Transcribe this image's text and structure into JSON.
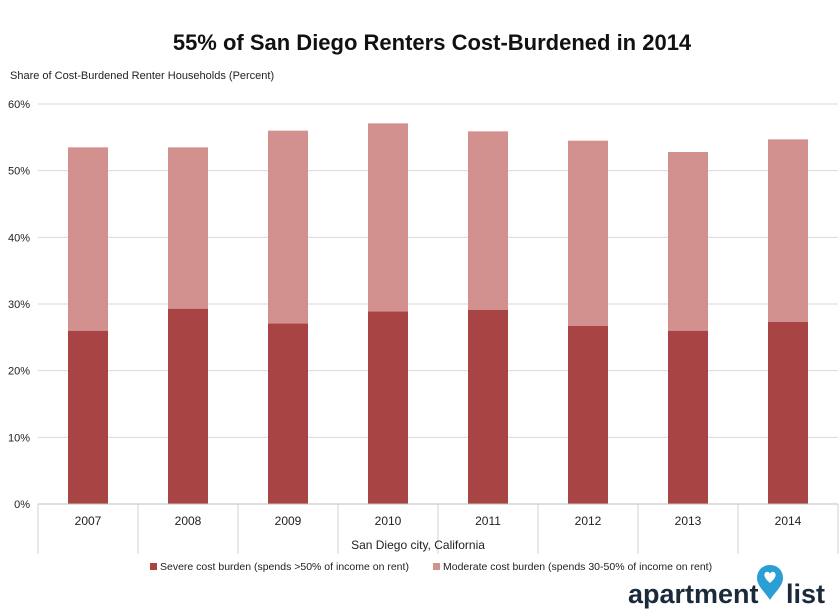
{
  "chart_data": {
    "type": "bar",
    "stacked": true,
    "title": "55% of San Diego Renters Cost-Burdened in 2014",
    "ylabel": "Share of Cost-Burdened Renter Households (Percent)",
    "xlabel": "San Diego city, California",
    "categories": [
      "2007",
      "2008",
      "2009",
      "2010",
      "2011",
      "2012",
      "2013",
      "2014"
    ],
    "series": [
      {
        "name": "Severe cost burden (spends >50% of income on rent)",
        "color": "#a84444",
        "values": [
          26.0,
          29.3,
          27.1,
          28.9,
          29.1,
          26.7,
          26.0,
          27.3
        ]
      },
      {
        "name": "Moderate cost burden (spends 30-50% of income on rent)",
        "color": "#d2918f",
        "values": [
          27.5,
          24.2,
          28.9,
          28.2,
          26.8,
          27.8,
          26.8,
          27.4
        ]
      }
    ],
    "ylim": [
      0,
      60
    ],
    "yticks": [
      0,
      10,
      20,
      30,
      40,
      50,
      60
    ],
    "ytick_suffix": "%",
    "grid": true,
    "legend_position": "bottom"
  },
  "brand": {
    "logo_icon": "map-pin-heart-icon",
    "logo_word_left": "apartment",
    "logo_word_right": "list",
    "pin_color": "#2a9fd6"
  }
}
